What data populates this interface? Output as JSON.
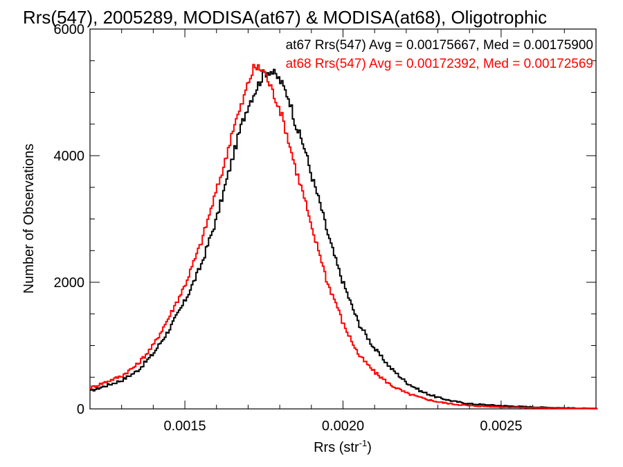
{
  "chart_data": {
    "type": "histogram",
    "title": "Rrs(547), 2005289, MODISA(at67) & MODISA(at68), Oligotrophic",
    "xlabel": "Rrs (str",
    "xlabel_sup": "-1",
    "xlabel_close": ")",
    "ylabel": "Number of Observations",
    "xlim": [
      0.0012,
      0.0028
    ],
    "ylim": [
      0,
      6000
    ],
    "xticks": [
      0.0015,
      0.002,
      0.0025
    ],
    "xtick_labels": [
      "0.0015",
      "0.0020",
      "0.0025"
    ],
    "yticks": [
      0,
      2000,
      4000,
      6000
    ],
    "ytick_labels": [
      "0",
      "2000",
      "4000",
      "6000"
    ],
    "legend_placement": "top-right",
    "series": [
      {
        "name": "at67 Rrs(547) Avg = 0.00175667, Med = 0.00175900",
        "color": "#000000",
        "mean": 0.00175667,
        "points": [
          [
            0.0012,
            280
          ],
          [
            0.0013,
            450
          ],
          [
            0.00135,
            600
          ],
          [
            0.0014,
            870
          ],
          [
            0.00145,
            1250
          ],
          [
            0.0015,
            1700
          ],
          [
            0.00155,
            2250
          ],
          [
            0.0016,
            3000
          ],
          [
            0.00165,
            3950
          ],
          [
            0.00168,
            4500
          ],
          [
            0.0017,
            4800
          ],
          [
            0.00172,
            5000
          ],
          [
            0.00175,
            5300
          ],
          [
            0.00177,
            5350
          ],
          [
            0.0018,
            5200
          ],
          [
            0.00183,
            4900
          ],
          [
            0.00185,
            4500
          ],
          [
            0.00188,
            4100
          ],
          [
            0.0019,
            3700
          ],
          [
            0.00193,
            3200
          ],
          [
            0.00195,
            2800
          ],
          [
            0.00198,
            2300
          ],
          [
            0.002,
            2000
          ],
          [
            0.00203,
            1600
          ],
          [
            0.00205,
            1350
          ],
          [
            0.0021,
            950
          ],
          [
            0.00215,
            650
          ],
          [
            0.0022,
            420
          ],
          [
            0.00225,
            270
          ],
          [
            0.0023,
            180
          ],
          [
            0.00235,
            120
          ],
          [
            0.0024,
            80
          ],
          [
            0.0025,
            50
          ],
          [
            0.0026,
            30
          ],
          [
            0.0027,
            15
          ],
          [
            0.0028,
            5
          ]
        ]
      },
      {
        "name": "at68 Rrs(547) Avg = 0.00172392, Med = 0.00172569",
        "color": "#ff0000",
        "mean": 0.00172392,
        "points": [
          [
            0.0012,
            330
          ],
          [
            0.0013,
            520
          ],
          [
            0.00135,
            700
          ],
          [
            0.0014,
            1000
          ],
          [
            0.00145,
            1450
          ],
          [
            0.0015,
            1950
          ],
          [
            0.00155,
            2600
          ],
          [
            0.0016,
            3450
          ],
          [
            0.00163,
            3950
          ],
          [
            0.00165,
            4400
          ],
          [
            0.00168,
            4800
          ],
          [
            0.0017,
            5150
          ],
          [
            0.00172,
            5400
          ],
          [
            0.00175,
            5350
          ],
          [
            0.00177,
            5100
          ],
          [
            0.0018,
            4750
          ],
          [
            0.00183,
            4200
          ],
          [
            0.00185,
            3800
          ],
          [
            0.00188,
            3300
          ],
          [
            0.0019,
            2850
          ],
          [
            0.00193,
            2400
          ],
          [
            0.00195,
            2000
          ],
          [
            0.00198,
            1650
          ],
          [
            0.002,
            1350
          ],
          [
            0.00203,
            1050
          ],
          [
            0.00205,
            850
          ],
          [
            0.0021,
            580
          ],
          [
            0.00215,
            380
          ],
          [
            0.0022,
            250
          ],
          [
            0.00225,
            170
          ],
          [
            0.0023,
            110
          ],
          [
            0.00235,
            75
          ],
          [
            0.0024,
            50
          ],
          [
            0.0025,
            30
          ],
          [
            0.0026,
            18
          ],
          [
            0.0027,
            10
          ],
          [
            0.0028,
            3
          ]
        ]
      }
    ]
  }
}
